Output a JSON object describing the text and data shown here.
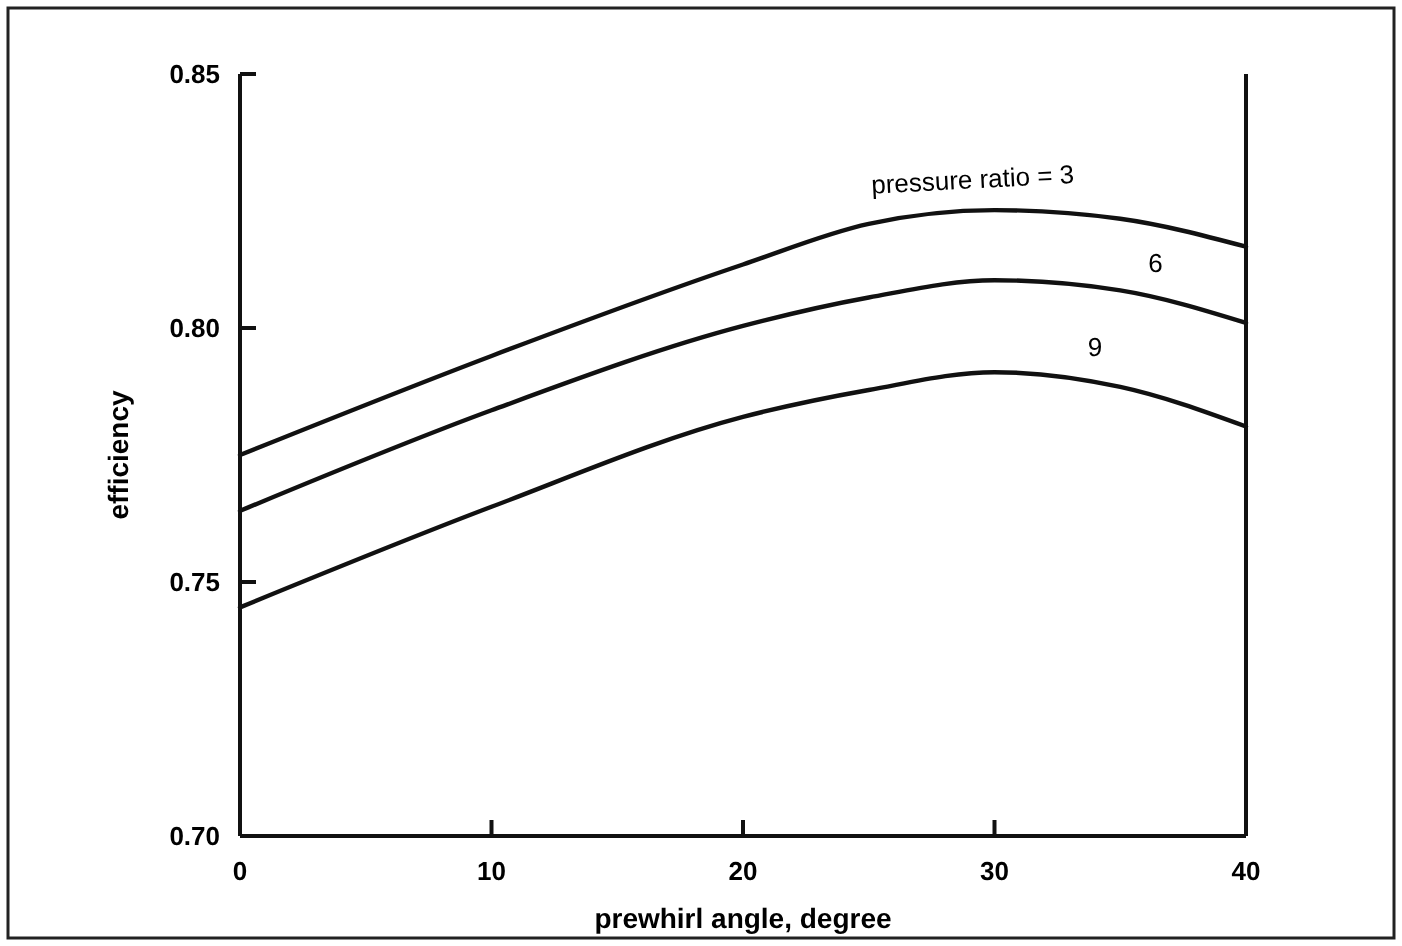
{
  "chart_data": {
    "type": "line",
    "xlabel": "prewhirl angle, degree",
    "ylabel": "efficiency",
    "x": [
      0,
      10,
      20,
      25,
      30,
      35,
      40
    ],
    "series": [
      {
        "name": "pressure ratio = 3",
        "color": "#111111",
        "values": [
          0.775,
          0.7945,
          0.8125,
          0.8205,
          0.8232,
          0.8215,
          0.816
        ]
      },
      {
        "name": "6",
        "color": "#111111",
        "values": [
          0.764,
          0.7838,
          0.8004,
          0.806,
          0.8094,
          0.8074,
          0.801
        ]
      },
      {
        "name": "9",
        "color": "#111111",
        "values": [
          0.745,
          0.7648,
          0.7825,
          0.7878,
          0.7913,
          0.7884,
          0.7806
        ]
      }
    ],
    "xlim": [
      0,
      40
    ],
    "xticks": [
      0,
      10,
      20,
      30,
      40
    ],
    "ylim": [
      0.7,
      0.85
    ],
    "yticks": [
      {
        "value": 0.7,
        "label": "0.70"
      },
      {
        "value": 0.75,
        "label": "0.75"
      },
      {
        "value": 0.8,
        "label": "0.80"
      },
      {
        "value": 0.85,
        "label": "0.85"
      }
    ],
    "grid": false,
    "marker": "none",
    "line_style": "solid"
  }
}
